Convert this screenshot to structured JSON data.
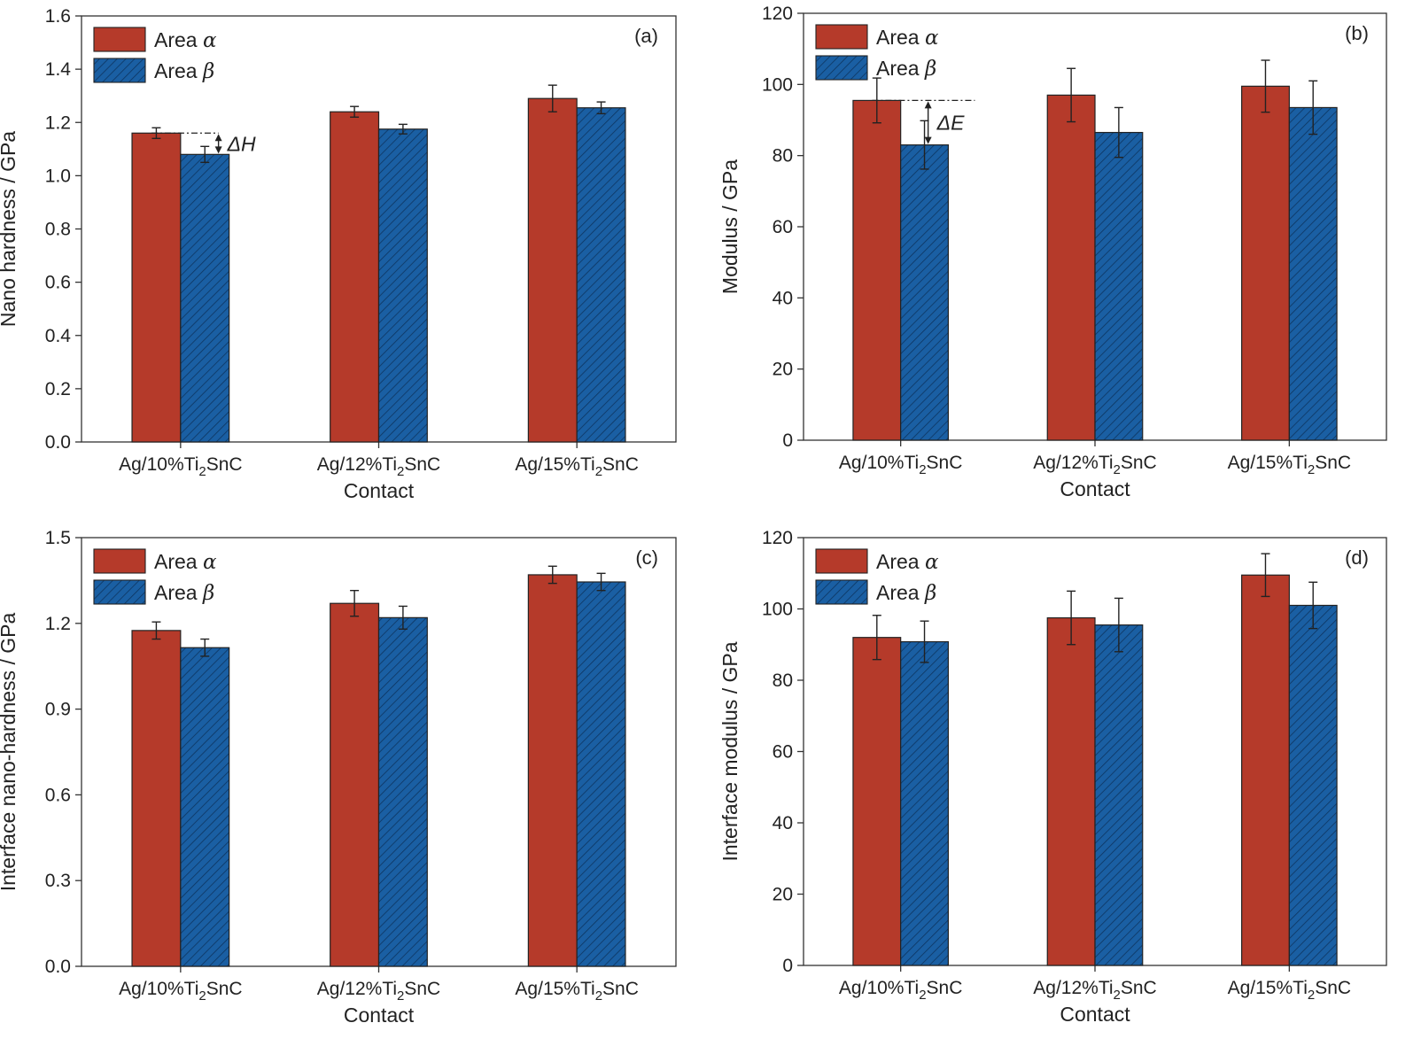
{
  "chart_data": [
    {
      "type": "bar",
      "panel": "(a)",
      "categories": [
        "Ag/10%Ti2SnC",
        "Ag/12%Ti2SnC",
        "Ag/15%Ti2SnC"
      ],
      "series": [
        {
          "name": "Area α",
          "values": [
            1.16,
            1.24,
            1.29
          ],
          "errors": [
            0.02,
            0.02,
            0.05
          ],
          "color": "#b53a2a"
        },
        {
          "name": "Area β",
          "values": [
            1.08,
            1.175,
            1.255
          ],
          "errors": [
            0.03,
            0.018,
            0.022
          ],
          "color": "#1a5fa3"
        }
      ],
      "ylabel": "Nano hardness / GPa",
      "xlabel": "Contact",
      "ylim": [
        0,
        1.6
      ],
      "yticks": [
        "0.0",
        "0.2",
        "0.4",
        "0.6",
        "0.8",
        "1.0",
        "1.2",
        "1.4",
        "1.6"
      ],
      "legend_position": "top-left",
      "annotation": "ΔH",
      "grid": false
    },
    {
      "type": "bar",
      "panel": "(b)",
      "categories": [
        "Ag/10%Ti2SnC",
        "Ag/12%Ti2SnC",
        "Ag/15%Ti2SnC"
      ],
      "series": [
        {
          "name": "Area α",
          "values": [
            95.5,
            97,
            99.5
          ],
          "errors": [
            6.3,
            7.5,
            7.3
          ],
          "color": "#b53a2a"
        },
        {
          "name": "Area β",
          "values": [
            83,
            86.5,
            93.5
          ],
          "errors": [
            6.8,
            7,
            7.5
          ],
          "color": "#1a5fa3"
        }
      ],
      "ylabel": "Modulus / GPa",
      "xlabel": "Contact",
      "ylim": [
        0,
        120
      ],
      "yticks": [
        "0",
        "20",
        "40",
        "60",
        "80",
        "100",
        "120"
      ],
      "legend_position": "top-left",
      "annotation": "ΔE",
      "grid": false
    },
    {
      "type": "bar",
      "panel": "(c)",
      "categories": [
        "Ag/10%Ti2SnC",
        "Ag/12%Ti2SnC",
        "Ag/15%Ti2SnC"
      ],
      "series": [
        {
          "name": "Area α",
          "values": [
            1.175,
            1.27,
            1.37
          ],
          "errors": [
            0.03,
            0.045,
            0.03
          ],
          "color": "#b53a2a"
        },
        {
          "name": "Area β",
          "values": [
            1.115,
            1.22,
            1.345
          ],
          "errors": [
            0.03,
            0.04,
            0.03
          ],
          "color": "#1a5fa3"
        }
      ],
      "ylabel": "Interface nano-hardness / GPa",
      "xlabel": "Contact",
      "ylim": [
        0,
        1.5
      ],
      "yticks": [
        "0.0",
        "0.3",
        "0.6",
        "0.9",
        "1.2",
        "1.5"
      ],
      "legend_position": "top-left",
      "grid": false
    },
    {
      "type": "bar",
      "panel": "(d)",
      "categories": [
        "Ag/10%Ti2SnC",
        "Ag/12%Ti2SnC",
        "Ag/15%Ti2SnC"
      ],
      "series": [
        {
          "name": "Area α",
          "values": [
            92,
            97.5,
            109.5
          ],
          "errors": [
            6.2,
            7.5,
            6
          ],
          "color": "#b53a2a"
        },
        {
          "name": "Area β",
          "values": [
            90.8,
            95.5,
            101
          ],
          "errors": [
            5.8,
            7.5,
            6.5
          ],
          "color": "#1a5fa3"
        }
      ],
      "ylabel": "Interface modulus / GPa",
      "xlabel": "Contact",
      "ylim": [
        0,
        120
      ],
      "yticks": [
        "0",
        "20",
        "40",
        "60",
        "80",
        "100",
        "120"
      ],
      "legend_position": "top-left",
      "grid": false
    }
  ]
}
